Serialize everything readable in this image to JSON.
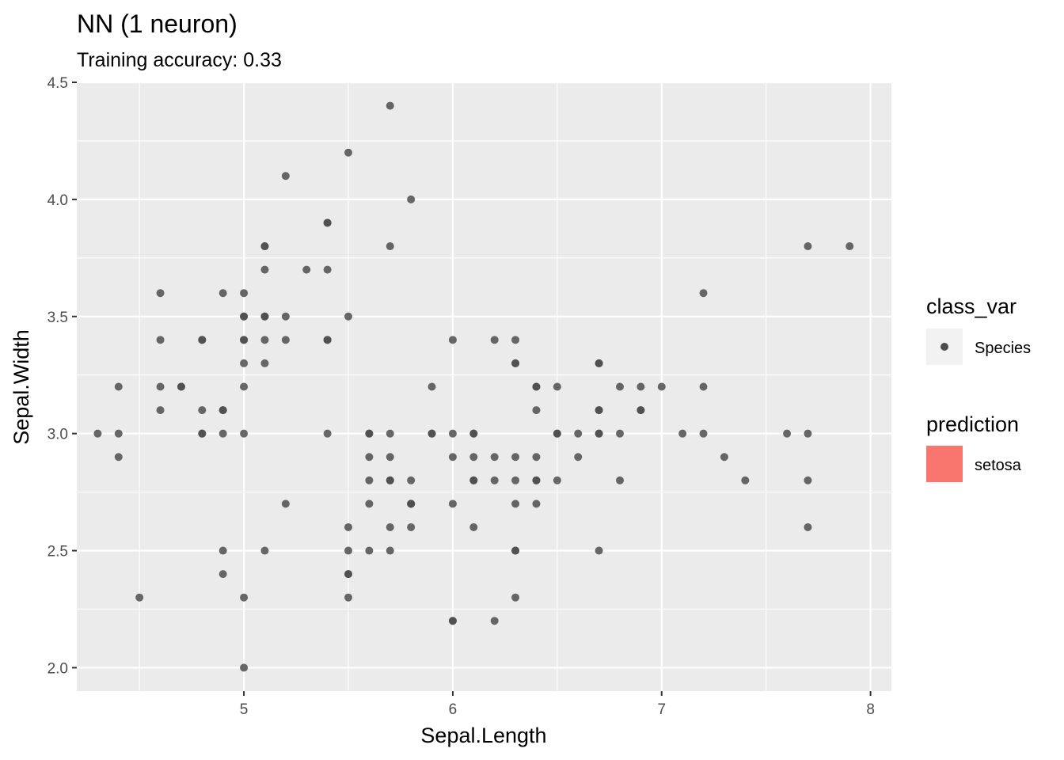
{
  "chart_data": {
    "type": "scatter",
    "title": "NN (1 neuron)",
    "subtitle": "Training accuracy: 0.33",
    "xlabel": "Sepal.Length",
    "ylabel": "Sepal.Width",
    "xlim": [
      4.2,
      8.1
    ],
    "ylim": [
      1.9,
      4.5
    ],
    "x_ticks": [
      5,
      6,
      7,
      8
    ],
    "y_ticks": [
      2.0,
      2.5,
      3.0,
      3.5,
      4.0,
      4.5
    ],
    "x_tick_labels": [
      "5",
      "6",
      "7",
      "8"
    ],
    "y_tick_labels": [
      "2.0",
      "2.5",
      "3.0",
      "3.5",
      "4.0",
      "4.5"
    ],
    "grid": true,
    "point_color": "#4d4d4d",
    "panel_color": "#ebebeb",
    "legend_position": "right",
    "legends": [
      {
        "title": "class_var",
        "entries": [
          {
            "label": "Species",
            "kind": "point",
            "color": "#4d4d4d"
          }
        ]
      },
      {
        "title": "prediction",
        "entries": [
          {
            "label": "setosa",
            "kind": "fill",
            "color": "#f8766d"
          }
        ]
      }
    ],
    "points": [
      [
        4.3,
        3.0
      ],
      [
        4.4,
        3.2
      ],
      [
        4.4,
        3.0
      ],
      [
        4.4,
        2.9
      ],
      [
        4.5,
        2.3
      ],
      [
        4.6,
        3.6
      ],
      [
        4.6,
        3.4
      ],
      [
        4.6,
        3.2
      ],
      [
        4.6,
        3.1
      ],
      [
        4.7,
        3.2
      ],
      [
        4.7,
        3.2
      ],
      [
        4.8,
        3.4
      ],
      [
        4.8,
        3.4
      ],
      [
        4.8,
        3.1
      ],
      [
        4.8,
        3.0
      ],
      [
        4.8,
        3.0
      ],
      [
        4.9,
        3.6
      ],
      [
        4.9,
        3.1
      ],
      [
        4.9,
        3.1
      ],
      [
        4.9,
        3.0
      ],
      [
        4.9,
        2.5
      ],
      [
        4.9,
        2.4
      ],
      [
        5.0,
        3.6
      ],
      [
        5.0,
        3.5
      ],
      [
        5.0,
        3.5
      ],
      [
        5.0,
        3.4
      ],
      [
        5.0,
        3.4
      ],
      [
        5.0,
        3.3
      ],
      [
        5.0,
        3.2
      ],
      [
        5.0,
        3.0
      ],
      [
        5.0,
        2.3
      ],
      [
        5.0,
        2.0
      ],
      [
        5.1,
        3.8
      ],
      [
        5.1,
        3.8
      ],
      [
        5.1,
        3.7
      ],
      [
        5.1,
        3.5
      ],
      [
        5.1,
        3.5
      ],
      [
        5.1,
        3.4
      ],
      [
        5.1,
        3.3
      ],
      [
        5.1,
        2.5
      ],
      [
        5.2,
        4.1
      ],
      [
        5.2,
        3.5
      ],
      [
        5.2,
        3.4
      ],
      [
        5.2,
        2.7
      ],
      [
        5.3,
        3.7
      ],
      [
        5.4,
        3.9
      ],
      [
        5.4,
        3.9
      ],
      [
        5.4,
        3.7
      ],
      [
        5.4,
        3.4
      ],
      [
        5.4,
        3.4
      ],
      [
        5.4,
        3.0
      ],
      [
        5.5,
        4.2
      ],
      [
        5.5,
        3.5
      ],
      [
        5.5,
        2.6
      ],
      [
        5.5,
        2.5
      ],
      [
        5.5,
        2.4
      ],
      [
        5.5,
        2.4
      ],
      [
        5.5,
        2.3
      ],
      [
        5.6,
        3.0
      ],
      [
        5.6,
        3.0
      ],
      [
        5.6,
        2.9
      ],
      [
        5.6,
        2.8
      ],
      [
        5.6,
        2.7
      ],
      [
        5.6,
        2.5
      ],
      [
        5.7,
        4.4
      ],
      [
        5.7,
        3.8
      ],
      [
        5.7,
        3.0
      ],
      [
        5.7,
        2.9
      ],
      [
        5.7,
        2.8
      ],
      [
        5.7,
        2.8
      ],
      [
        5.7,
        2.6
      ],
      [
        5.7,
        2.5
      ],
      [
        5.8,
        4.0
      ],
      [
        5.8,
        2.8
      ],
      [
        5.8,
        2.7
      ],
      [
        5.8,
        2.7
      ],
      [
        5.8,
        2.7
      ],
      [
        5.8,
        2.6
      ],
      [
        5.9,
        3.2
      ],
      [
        5.9,
        3.0
      ],
      [
        5.9,
        3.0
      ],
      [
        6.0,
        3.4
      ],
      [
        6.0,
        3.0
      ],
      [
        6.0,
        2.9
      ],
      [
        6.0,
        2.7
      ],
      [
        6.0,
        2.2
      ],
      [
        6.0,
        2.2
      ],
      [
        6.1,
        3.0
      ],
      [
        6.1,
        3.0
      ],
      [
        6.1,
        2.9
      ],
      [
        6.1,
        2.8
      ],
      [
        6.1,
        2.8
      ],
      [
        6.1,
        2.6
      ],
      [
        6.2,
        3.4
      ],
      [
        6.2,
        2.9
      ],
      [
        6.2,
        2.8
      ],
      [
        6.2,
        2.2
      ],
      [
        6.3,
        3.4
      ],
      [
        6.3,
        3.3
      ],
      [
        6.3,
        3.3
      ],
      [
        6.3,
        2.9
      ],
      [
        6.3,
        2.8
      ],
      [
        6.3,
        2.7
      ],
      [
        6.3,
        2.5
      ],
      [
        6.3,
        2.5
      ],
      [
        6.3,
        2.3
      ],
      [
        6.4,
        3.2
      ],
      [
        6.4,
        3.2
      ],
      [
        6.4,
        3.1
      ],
      [
        6.4,
        2.9
      ],
      [
        6.4,
        2.8
      ],
      [
        6.4,
        2.8
      ],
      [
        6.4,
        2.7
      ],
      [
        6.5,
        3.2
      ],
      [
        6.5,
        3.0
      ],
      [
        6.5,
        3.0
      ],
      [
        6.5,
        2.8
      ],
      [
        6.6,
        3.0
      ],
      [
        6.6,
        2.9
      ],
      [
        6.7,
        3.3
      ],
      [
        6.7,
        3.3
      ],
      [
        6.7,
        3.1
      ],
      [
        6.7,
        3.1
      ],
      [
        6.7,
        3.0
      ],
      [
        6.7,
        3.0
      ],
      [
        6.7,
        2.5
      ],
      [
        6.8,
        3.2
      ],
      [
        6.8,
        3.0
      ],
      [
        6.8,
        2.8
      ],
      [
        6.9,
        3.2
      ],
      [
        6.9,
        3.1
      ],
      [
        6.9,
        3.1
      ],
      [
        7.0,
        3.2
      ],
      [
        7.1,
        3.0
      ],
      [
        7.2,
        3.6
      ],
      [
        7.2,
        3.2
      ],
      [
        7.2,
        3.0
      ],
      [
        7.3,
        2.9
      ],
      [
        7.4,
        2.8
      ],
      [
        7.6,
        3.0
      ],
      [
        7.7,
        3.8
      ],
      [
        7.7,
        3.0
      ],
      [
        7.7,
        2.8
      ],
      [
        7.7,
        2.6
      ],
      [
        7.9,
        3.8
      ]
    ]
  }
}
